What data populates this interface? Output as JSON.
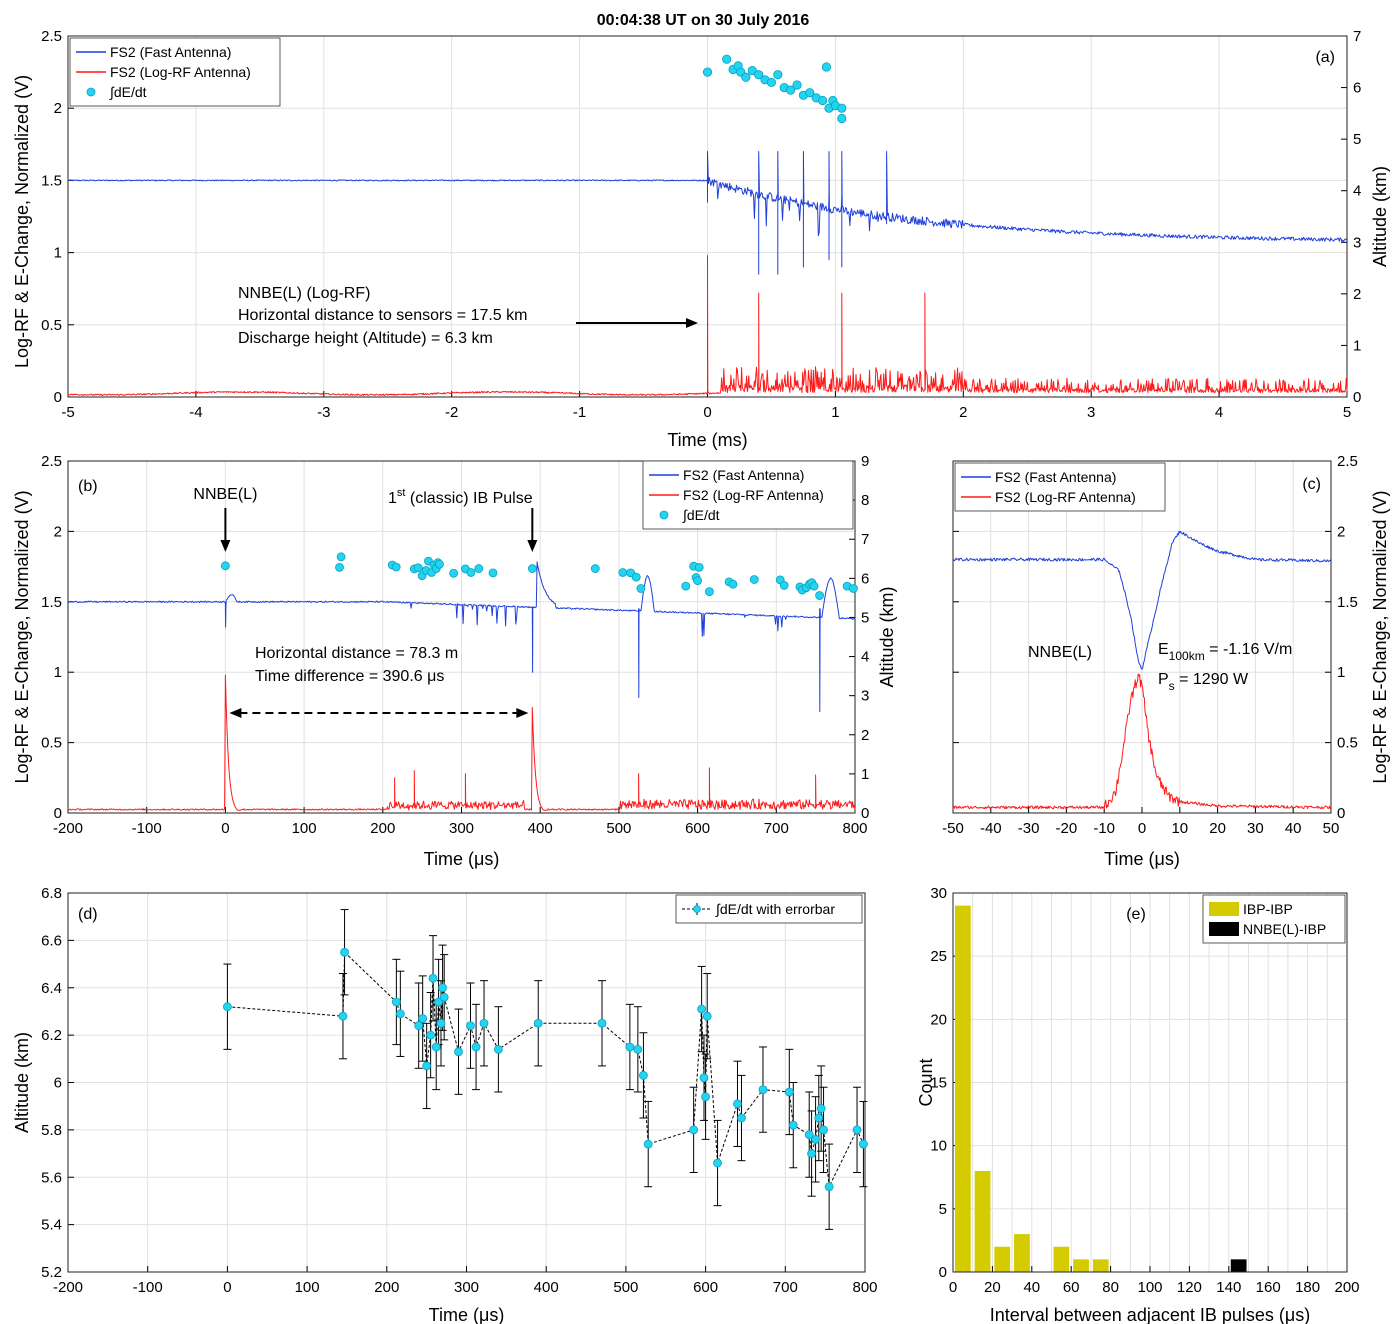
{
  "figure_title": "00:04:38 UT on 30 July 2016",
  "chart_data": [
    {
      "panel": "(a)",
      "type": "line",
      "xlabel": "Time (ms)",
      "ylabel": "Log-RF & E-Change, Normalized (V)",
      "y2label": "Altitude (km)",
      "xlim": [
        -5,
        5
      ],
      "ylim": [
        0,
        2.5
      ],
      "y2lim": [
        0,
        7
      ],
      "xticks": [
        "-5",
        "-4",
        "-3",
        "-2",
        "-1",
        "0",
        "1",
        "2",
        "3",
        "4",
        "5"
      ],
      "yticks": [
        "0",
        "0.5",
        "1",
        "1.5",
        "2",
        "2.5"
      ],
      "y2ticks": [
        "0",
        "1",
        "2",
        "3",
        "4",
        "5",
        "6",
        "7"
      ],
      "grid": true,
      "legend_position": "top-left",
      "series": [
        {
          "name": "FS2 (Fast Antenna)",
          "color": "#1f3fdc",
          "baseline_before": 1.5,
          "value_at_end": 1.07,
          "spikes_x": [
            0.0,
            0.4,
            0.55,
            0.75,
            0.95,
            1.05,
            1.4
          ]
        },
        {
          "name": "FS2 (Log-RF Antenna)",
          "color": "#ff1a1a",
          "baseline_before": 0.02,
          "peak_x": 0.0,
          "peak_value": 0.98,
          "spikes_x": [
            0.4,
            1.05,
            1.7
          ]
        },
        {
          "name": "∫dE/dt",
          "color": "#22d4f0",
          "axis": "right",
          "points": [
            [
              0.0,
              6.3
            ],
            [
              0.15,
              6.55
            ],
            [
              0.2,
              6.35
            ],
            [
              0.24,
              6.42
            ],
            [
              0.26,
              6.3
            ],
            [
              0.3,
              6.2
            ],
            [
              0.35,
              6.33
            ],
            [
              0.4,
              6.25
            ],
            [
              0.45,
              6.15
            ],
            [
              0.5,
              6.1
            ],
            [
              0.55,
              6.25
            ],
            [
              0.6,
              6.0
            ],
            [
              0.65,
              5.95
            ],
            [
              0.7,
              6.05
            ],
            [
              0.75,
              5.85
            ],
            [
              0.8,
              5.9
            ],
            [
              0.85,
              5.8
            ],
            [
              0.9,
              5.75
            ],
            [
              0.93,
              6.4
            ],
            [
              0.95,
              5.6
            ],
            [
              0.98,
              5.75
            ],
            [
              1.0,
              5.65
            ],
            [
              1.05,
              5.6
            ],
            [
              1.05,
              5.4
            ]
          ]
        }
      ],
      "annotations": [
        "NNBE(L) (Log-RF)",
        "Horizontal distance to sensors = 17.5 km",
        "Discharge height (Altitude) = 6.3 km"
      ]
    },
    {
      "panel": "(b)",
      "type": "line",
      "xlabel": "Time (μs)",
      "ylabel": "Log-RF & E-Change, Normalized (V)",
      "y2label": "Altitude (km)",
      "xlim": [
        -200,
        800
      ],
      "ylim": [
        0,
        2.5
      ],
      "y2lim": [
        0,
        9
      ],
      "xticks": [
        "-200",
        "-100",
        "0",
        "100",
        "200",
        "300",
        "400",
        "500",
        "600",
        "700",
        "800"
      ],
      "yticks": [
        "0",
        "0.5",
        "1",
        "1.5",
        "2",
        "2.5"
      ],
      "y2ticks": [
        "0",
        "1",
        "2",
        "3",
        "4",
        "5",
        "6",
        "7",
        "8",
        "9"
      ],
      "grid": true,
      "legend_position": "top-right",
      "series": [
        {
          "name": "FS2 (Fast Antenna)",
          "color": "#1f3fdc",
          "baseline": 1.5,
          "dips": [
            [
              0,
              1.32
            ],
            [
              390,
              1.0
            ],
            [
              525,
              0.82
            ],
            [
              755,
              0.72
            ]
          ]
        },
        {
          "name": "FS2 (Log-RF Antenna)",
          "color": "#ff1a1a",
          "baseline": 0.02,
          "peaks": [
            [
              0,
              0.98
            ],
            [
              390,
              0.75
            ],
            [
              215,
              0.25
            ],
            [
              240,
              0.3
            ],
            [
              305,
              0.28
            ],
            [
              525,
              0.28
            ],
            [
              615,
              0.32
            ],
            [
              750,
              0.27
            ]
          ]
        },
        {
          "name": "∫dE/dt",
          "color": "#22d4f0",
          "axis": "right",
          "points": [
            [
              0,
              6.32
            ],
            [
              145,
              6.28
            ],
            [
              147,
              6.55
            ],
            [
              212,
              6.34
            ],
            [
              217,
              6.29
            ],
            [
              240,
              6.24
            ],
            [
              245,
              6.27
            ],
            [
              250,
              6.07
            ],
            [
              255,
              6.2
            ],
            [
              258,
              6.44
            ],
            [
              262,
              6.15
            ],
            [
              265,
              6.34
            ],
            [
              268,
              6.25
            ],
            [
              270,
              6.4
            ],
            [
              272,
              6.36
            ],
            [
              290,
              6.13
            ],
            [
              305,
              6.24
            ],
            [
              312,
              6.15
            ],
            [
              322,
              6.25
            ],
            [
              340,
              6.14
            ],
            [
              390,
              6.25
            ],
            [
              470,
              6.25
            ],
            [
              505,
              6.15
            ],
            [
              515,
              6.14
            ],
            [
              522,
              6.03
            ],
            [
              528,
              5.74
            ],
            [
              585,
              5.8
            ],
            [
              595,
              6.31
            ],
            [
              598,
              6.02
            ],
            [
              600,
              5.94
            ],
            [
              602,
              6.28
            ],
            [
              615,
              5.66
            ],
            [
              640,
              5.91
            ],
            [
              645,
              5.85
            ],
            [
              672,
              5.97
            ],
            [
              705,
              5.96
            ],
            [
              710,
              5.82
            ],
            [
              730,
              5.78
            ],
            [
              733,
              5.7
            ],
            [
              738,
              5.76
            ],
            [
              742,
              5.85
            ],
            [
              745,
              5.89
            ],
            [
              748,
              5.8
            ],
            [
              755,
              5.56
            ],
            [
              790,
              5.8
            ],
            [
              798,
              5.74
            ]
          ]
        }
      ],
      "annotations": [
        "NNBE(L)",
        "1",
        "st",
        " (classic) IB Pulse",
        "Horizontal distance = 78.3 m",
        "Time difference = 390.6 μs"
      ]
    },
    {
      "panel": "(c)",
      "type": "line",
      "xlabel": "Time (μs)",
      "ylabel": "Log-RF & E-Change, Normalized (V)",
      "xlim": [
        -50,
        50
      ],
      "ylim": [
        0,
        2.5
      ],
      "xticks": [
        "-50",
        "-40",
        "-30",
        "-20",
        "-10",
        "0",
        "10",
        "20",
        "30",
        "40",
        "50"
      ],
      "yticks": [
        "0",
        "0.5",
        "1",
        "1.5",
        "2",
        "2.5"
      ],
      "grid": true,
      "legend_position": "top-left",
      "series": [
        {
          "name": "FS2 (Fast Antenna)",
          "color": "#1f3fdc",
          "points": [
            [
              -50,
              1.8
            ],
            [
              -10,
              1.8
            ],
            [
              -6,
              1.72
            ],
            [
              -3,
              1.4
            ],
            [
              -1,
              1.08
            ],
            [
              0,
              1.02
            ],
            [
              2,
              1.25
            ],
            [
              5,
              1.6
            ],
            [
              8,
              1.92
            ],
            [
              10,
              2.0
            ],
            [
              15,
              1.92
            ],
            [
              20,
              1.86
            ],
            [
              30,
              1.8
            ],
            [
              50,
              1.79
            ]
          ]
        },
        {
          "name": "FS2 (Log-RF Antenna)",
          "color": "#ff1a1a",
          "points": [
            [
              -50,
              0.04
            ],
            [
              -10,
              0.04
            ],
            [
              -7,
              0.15
            ],
            [
              -5,
              0.45
            ],
            [
              -3,
              0.8
            ],
            [
              -1,
              0.98
            ],
            [
              0,
              0.9
            ],
            [
              2,
              0.5
            ],
            [
              4,
              0.25
            ],
            [
              7,
              0.12
            ],
            [
              10,
              0.08
            ],
            [
              20,
              0.05
            ],
            [
              50,
              0.04
            ]
          ]
        }
      ],
      "annotations": [
        "NNBE(L)",
        "E",
        "100km",
        " = -1.16 V/m",
        "P",
        "s",
        " = 1290 W"
      ]
    },
    {
      "panel": "(d)",
      "type": "scatter",
      "xlabel": "Time (μs)",
      "ylabel": "Altitude (km)",
      "xlim": [
        -200,
        800
      ],
      "ylim": [
        5.2,
        6.8
      ],
      "xticks": [
        "-200",
        "-100",
        "0",
        "100",
        "200",
        "300",
        "400",
        "500",
        "600",
        "700",
        "800"
      ],
      "yticks": [
        "5.2",
        "5.4",
        "5.6",
        "5.8",
        "6",
        "6.2",
        "6.4",
        "6.6",
        "6.8"
      ],
      "grid": true,
      "legend_position": "top-right",
      "series": [
        {
          "name": "∫dE/dt with errorbar",
          "color": "#22d4f0",
          "error": 0.18,
          "points": [
            [
              0,
              6.32
            ],
            [
              145,
              6.28
            ],
            [
              147,
              6.55
            ],
            [
              212,
              6.34
            ],
            [
              217,
              6.29
            ],
            [
              240,
              6.24
            ],
            [
              245,
              6.27
            ],
            [
              250,
              6.07
            ],
            [
              255,
              6.2
            ],
            [
              258,
              6.44
            ],
            [
              262,
              6.15
            ],
            [
              265,
              6.34
            ],
            [
              268,
              6.25
            ],
            [
              270,
              6.4
            ],
            [
              272,
              6.36
            ],
            [
              290,
              6.13
            ],
            [
              305,
              6.24
            ],
            [
              312,
              6.15
            ],
            [
              322,
              6.25
            ],
            [
              340,
              6.14
            ],
            [
              390,
              6.25
            ],
            [
              470,
              6.25
            ],
            [
              505,
              6.15
            ],
            [
              515,
              6.14
            ],
            [
              522,
              6.03
            ],
            [
              528,
              5.74
            ],
            [
              585,
              5.8
            ],
            [
              595,
              6.31
            ],
            [
              598,
              6.02
            ],
            [
              600,
              5.94
            ],
            [
              602,
              6.28
            ],
            [
              615,
              5.66
            ],
            [
              640,
              5.91
            ],
            [
              645,
              5.85
            ],
            [
              672,
              5.97
            ],
            [
              705,
              5.96
            ],
            [
              710,
              5.82
            ],
            [
              730,
              5.78
            ],
            [
              733,
              5.7
            ],
            [
              738,
              5.76
            ],
            [
              742,
              5.85
            ],
            [
              745,
              5.89
            ],
            [
              748,
              5.8
            ],
            [
              755,
              5.56
            ],
            [
              790,
              5.8
            ],
            [
              798,
              5.74
            ]
          ]
        }
      ]
    },
    {
      "panel": "(e)",
      "type": "bar",
      "xlabel": "Interval between adjacent IB pulses (μs)",
      "ylabel": "Count",
      "xlim": [
        0,
        200
      ],
      "ylim": [
        0,
        30
      ],
      "xticks": [
        "0",
        "20",
        "40",
        "60",
        "80",
        "100",
        "120",
        "140",
        "160",
        "180",
        "200"
      ],
      "yticks": [
        "0",
        "5",
        "10",
        "15",
        "20",
        "25",
        "30"
      ],
      "grid": true,
      "legend_position": "top-right",
      "bin_width": 10,
      "series": [
        {
          "name": "IBP-IBP",
          "color": "#d4cc00",
          "bins": [
            [
              0,
              29
            ],
            [
              10,
              8
            ],
            [
              20,
              2
            ],
            [
              30,
              3
            ],
            [
              50,
              2
            ],
            [
              60,
              1
            ],
            [
              70,
              1
            ]
          ]
        },
        {
          "name": "NNBE(L)-IBP",
          "color": "#000000",
          "bins": [
            [
              140,
              1
            ]
          ]
        }
      ]
    }
  ]
}
